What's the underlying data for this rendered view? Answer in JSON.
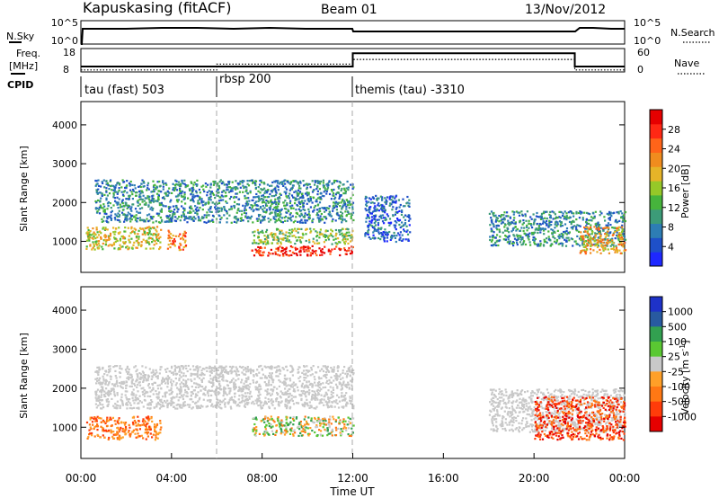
{
  "header": {
    "station": "Kapuskasing (fitACF)",
    "beam": "Beam 01",
    "date": "13/Nov/2012"
  },
  "nsky_panel": {
    "left_label": "N.Sky",
    "left_ticks": [
      "10^5",
      "10^0"
    ],
    "right_label": "N.Search",
    "right_ticks": [
      "10^5",
      "10^0"
    ]
  },
  "freq_panel": {
    "left_label_line1": "Freq.",
    "left_label_line2": "[MHz]",
    "left_ticks": [
      "18",
      "8"
    ],
    "right_label": "Nave",
    "right_ticks": [
      "60",
      "0"
    ],
    "freq_mhz": [
      {
        "start_ut": 0.0,
        "end_ut": 12.0,
        "value": 10.3
      },
      {
        "start_ut": 12.0,
        "end_ut": 21.8,
        "value": 16.0
      },
      {
        "start_ut": 21.8,
        "end_ut": 24.0,
        "value": 10.3
      }
    ],
    "nave": [
      {
        "start_ut": 0.0,
        "end_ut": 6.0,
        "value": 5
      },
      {
        "start_ut": 6.0,
        "end_ut": 12.0,
        "value": 20
      },
      {
        "start_ut": 12.0,
        "end_ut": 21.8,
        "value": 32
      },
      {
        "start_ut": 21.8,
        "end_ut": 24.0,
        "value": 5
      }
    ]
  },
  "cpid_panel": {
    "label": "CPID",
    "segments": [
      {
        "start_ut": 0,
        "end_ut": 6,
        "label": "tau (fast) 503"
      },
      {
        "start_ut": 6,
        "end_ut": 12,
        "label": "rbsp 200"
      },
      {
        "start_ut": 12,
        "end_ut": 24,
        "label": "themis (tau) -3310"
      }
    ]
  },
  "chart_data": [
    {
      "type": "heatmap",
      "panel": "power",
      "ylabel": "Slant Range [km]",
      "yticks": [
        "1000",
        "2000",
        "3000",
        "4000"
      ],
      "ylim": [
        200,
        4600
      ],
      "xlim": [
        0,
        24
      ],
      "colorbar": {
        "label": "Power [dB]",
        "ticks": [
          "4",
          "8",
          "12",
          "16",
          "20",
          "24",
          "28"
        ],
        "range": [
          0,
          32
        ],
        "colors": [
          "#1e28ff",
          "#1e50c8",
          "#2d7db4",
          "#3c9b78",
          "#46b43c",
          "#96c828",
          "#e6b428",
          "#f08c1e",
          "#ff6419",
          "#ff2814",
          "#e60000"
        ]
      },
      "features": [
        {
          "start_ut": 0.6,
          "end_ut": 12.0,
          "range_min_km": 1500,
          "range_max_km": 2600,
          "level": 3
        },
        {
          "start_ut": 0.2,
          "end_ut": 3.5,
          "range_min_km": 800,
          "range_max_km": 1400,
          "level": 6
        },
        {
          "start_ut": 3.8,
          "end_ut": 4.6,
          "range_min_km": 800,
          "range_max_km": 1300,
          "level": 8
        },
        {
          "start_ut": 7.5,
          "end_ut": 12.0,
          "range_min_km": 650,
          "range_max_km": 900,
          "level": 10
        },
        {
          "start_ut": 7.5,
          "end_ut": 12.0,
          "range_min_km": 950,
          "range_max_km": 1350,
          "level": 5
        },
        {
          "start_ut": 12.5,
          "end_ut": 14.5,
          "range_min_km": 1000,
          "range_max_km": 2200,
          "level": 2
        },
        {
          "start_ut": 18.0,
          "end_ut": 24.0,
          "range_min_km": 900,
          "range_max_km": 1800,
          "level": 3
        },
        {
          "start_ut": 22.0,
          "end_ut": 24.0,
          "range_min_km": 700,
          "range_max_km": 1400,
          "level": 7
        }
      ]
    },
    {
      "type": "heatmap",
      "panel": "velocity",
      "ylabel": "Slant Range [km]",
      "yticks": [
        "1000",
        "2000",
        "3000",
        "4000"
      ],
      "ylim": [
        200,
        4600
      ],
      "xlim": [
        0,
        24
      ],
      "xticks": [
        "00:00",
        "04:00",
        "08:00",
        "12:00",
        "16:00",
        "20:00",
        "00:00"
      ],
      "xlabel": "Time UT",
      "colorbar": {
        "label": "Velocity [m s^-1]",
        "ticks": [
          "1000",
          "500",
          "100",
          "25",
          "-25",
          "-100",
          "-500",
          "-1000"
        ],
        "colors": [
          "#1e32c8",
          "#285aa0",
          "#32a050",
          "#5ac832",
          "#c8c8c8",
          "#ffa028",
          "#ff7814",
          "#ff3c0a",
          "#e60000"
        ]
      },
      "features": [
        {
          "start_ut": 0.6,
          "end_ut": 12.0,
          "range_min_km": 1500,
          "range_max_km": 2600,
          "class": "-25..25"
        },
        {
          "start_ut": 0.2,
          "end_ut": 3.5,
          "range_min_km": 700,
          "range_max_km": 1300,
          "class": "-500..-100"
        },
        {
          "start_ut": 7.5,
          "end_ut": 12.0,
          "range_min_km": 800,
          "range_max_km": 1300,
          "class": "mixed"
        },
        {
          "start_ut": 18.0,
          "end_ut": 24.0,
          "range_min_km": 900,
          "range_max_km": 2000,
          "class": "-25..25"
        },
        {
          "start_ut": 20.0,
          "end_ut": 24.0,
          "range_min_km": 700,
          "range_max_km": 1800,
          "class": "-1000..-100"
        }
      ]
    }
  ]
}
